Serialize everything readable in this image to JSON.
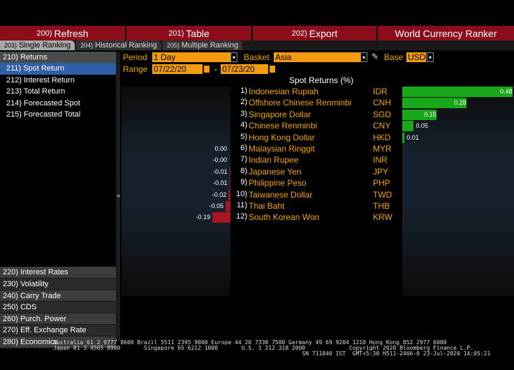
{
  "toolbar": {
    "refresh": {
      "num": "200)",
      "label": "Refresh"
    },
    "table": {
      "num": "201)",
      "label": "Table"
    },
    "export": {
      "num": "202)",
      "label": "Export"
    },
    "title": "World Currency Ranker"
  },
  "tabs": [
    {
      "num": "203)",
      "label": "Single Ranking",
      "active": true
    },
    {
      "num": "204)",
      "label": "Historical Ranking",
      "active": false
    },
    {
      "num": "205)",
      "label": "Multiple Ranking",
      "active": false
    }
  ],
  "sidebar": {
    "returns_header": "210) Returns",
    "sub_items": [
      {
        "label": "211) Spot Return",
        "selected": true
      },
      {
        "label": "212) Interest Return",
        "selected": false
      },
      {
        "label": "213) Total Return",
        "selected": false
      },
      {
        "label": "214) Forecasted Spot",
        "selected": false
      },
      {
        "label": "215) Forecasted Total",
        "selected": false
      }
    ],
    "categories": [
      "220) Interest Rates",
      "230) Volatility",
      "240) Carry Trade",
      "250) CDS",
      "260) Purch. Power",
      "270) Eff. Exchange Rate",
      "280) Economics"
    ]
  },
  "filters": {
    "period_label": "Period",
    "period_value": "1 Day",
    "basket_label": "Basket",
    "basket_value": "Asia",
    "base_label": "Base",
    "base_value": "USD",
    "range_label": "Range",
    "range_from": "07/22/20",
    "range_sep": "-",
    "range_to": "07/23/20"
  },
  "chart_title": "Spot Returns (%)",
  "chart_data": {
    "type": "bar",
    "title": "Spot Returns (%)",
    "categories": [
      "Indonesian Rupiah",
      "Offshore Chinese Renminbi",
      "Singapore Dollar",
      "Chinese Renminbi",
      "Hong Kong Dollar",
      "Malaysian Ringgit",
      "Indian Rupee",
      "Japanese Yen",
      "Philippine Peso",
      "Taiwanese Dollar",
      "Thai Baht",
      "South Korean Won"
    ],
    "ranks": [
      "1)",
      "2)",
      "3)",
      "4)",
      "5)",
      "6)",
      "7)",
      "8)",
      "9)",
      "10)",
      "11)",
      "12)"
    ],
    "codes": [
      "IDR",
      "CNH",
      "SGD",
      "CNY",
      "HKD",
      "MYR",
      "INR",
      "JPY",
      "PHP",
      "TWD",
      "THB",
      "KRW"
    ],
    "values": [
      0.48,
      0.28,
      0.15,
      0.05,
      0.01,
      0.0,
      -0.0,
      -0.01,
      -0.01,
      -0.02,
      -0.05,
      -0.19
    ],
    "labels": [
      "0.48",
      "0.28",
      "0.15",
      "0.05",
      "0.01",
      "0.00",
      "-0.00",
      "-0.01",
      "-0.01",
      "-0.02",
      "-0.05",
      "-0.19"
    ],
    "colors": {
      "positive": "#18a81a",
      "negative": "#a81424"
    }
  },
  "footer": {
    "line1": "Australia 61 2 9777 8600 Brazil 5511 2395 9000 Europe 44 20 7330 7500 Germany 49 69 9204 1210 Hong Kong 852 2977 6000",
    "line2": "Japan 81 3 4565 8900       Singapore 65 6212 1000       U.S. 1 212 318 2000             Copyright 2020 Bloomberg Finance L.P.",
    "line3": "                                                                          SN 711840 IST  GMT+5:30 H511-2466-0 23-Jul-2020 14:05:21"
  }
}
